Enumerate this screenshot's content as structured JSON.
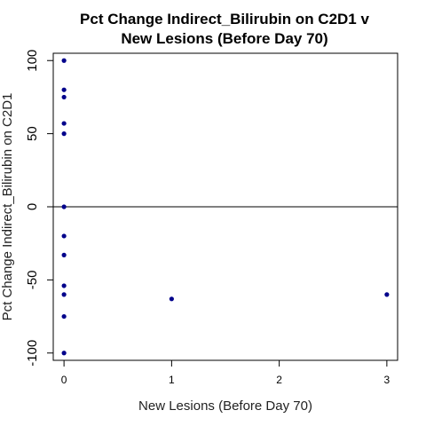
{
  "chart_data": {
    "type": "scatter",
    "title": "Pct Change Indirect_Bilirubin on C2D1 v",
    "subtitle": "New Lesions (Before Day 70)",
    "xlabel": "New Lesions (Before Day 70)",
    "ylabel": "Pct Change Indirect_Bilirubin on C2D1",
    "xlim": [
      -0.1,
      3.1
    ],
    "ylim": [
      -105,
      105
    ],
    "xticks": [
      0,
      1,
      2,
      3
    ],
    "yticks": [
      -100,
      -50,
      0,
      50,
      100
    ],
    "hline": 0,
    "grid": false,
    "point_color": "#00008B",
    "points": [
      {
        "x": 0,
        "y": 100
      },
      {
        "x": 0,
        "y": 80
      },
      {
        "x": 0,
        "y": 75
      },
      {
        "x": 0,
        "y": 57
      },
      {
        "x": 0,
        "y": 50
      },
      {
        "x": 0,
        "y": 0
      },
      {
        "x": 0,
        "y": -20
      },
      {
        "x": 0,
        "y": -33
      },
      {
        "x": 0,
        "y": -54
      },
      {
        "x": 0,
        "y": -60
      },
      {
        "x": 0,
        "y": -75
      },
      {
        "x": 0,
        "y": -100
      },
      {
        "x": 1,
        "y": -63
      },
      {
        "x": 3,
        "y": -60
      }
    ]
  }
}
